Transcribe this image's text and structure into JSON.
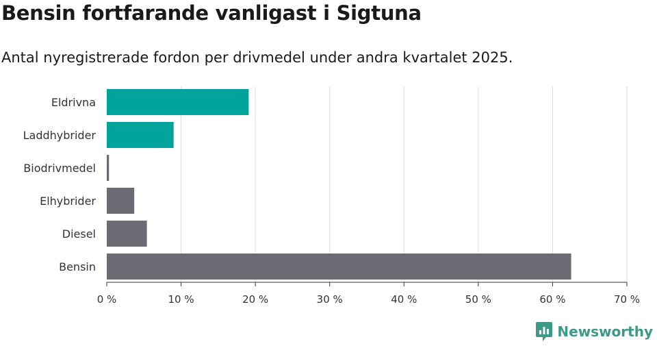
{
  "header": {
    "title": "Bensin fortfarande vanligast i Sigtuna",
    "subtitle": "Antal nyregistrerade fordon per drivmedel under andra kvartalet 2025."
  },
  "brand": {
    "name": "Newsworthy",
    "color": "#3d9a87",
    "icon": "bar-chart-logo-icon"
  },
  "chart_data": {
    "type": "bar",
    "orientation": "horizontal",
    "categories": [
      "Eldrivna",
      "Laddhybrider",
      "Biodrivmedel",
      "Elhybrider",
      "Diesel",
      "Bensin"
    ],
    "values": [
      19.1,
      9.0,
      0.3,
      3.7,
      5.4,
      62.5
    ],
    "colors": [
      "#00a49a",
      "#00a49a",
      "#6b6b74",
      "#6b6b74",
      "#6b6b74",
      "#6b6b74"
    ],
    "xlim": [
      0,
      70
    ],
    "xticks": [
      0,
      10,
      20,
      30,
      40,
      50,
      60,
      70
    ],
    "tick_labels": [
      "0 %",
      "10 %",
      "20 %",
      "30 %",
      "40 %",
      "50 %",
      "60 %",
      "70 %"
    ],
    "xlabel": "",
    "ylabel": "",
    "grid": true,
    "legend": "none"
  }
}
